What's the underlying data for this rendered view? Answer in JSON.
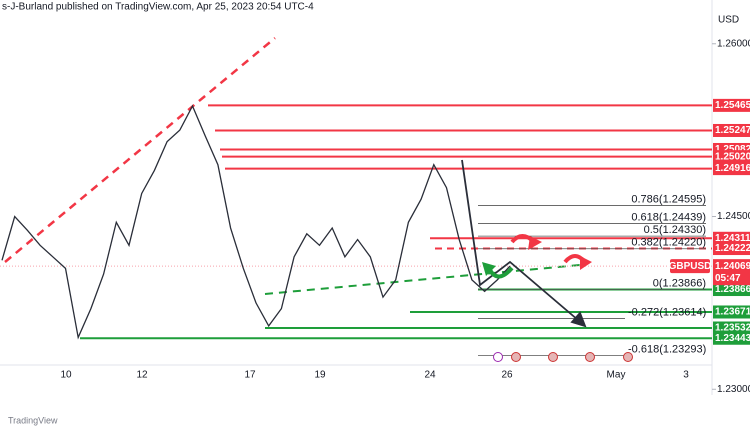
{
  "header": {
    "author_line": "s-J-Burland published on TradingView.com, Apr 25, 2023 20:54 UTC-4",
    "currency": "USD",
    "footer": "TradingView"
  },
  "chart_data": {
    "type": "line",
    "color": "#2a2e39",
    "values": [
      1.2412,
      1.245,
      1.2438,
      1.2425,
      1.2415,
      1.2405,
      1.2345,
      1.237,
      1.24,
      1.2445,
      1.2425,
      1.247,
      1.249,
      1.2515,
      1.2525,
      1.2546,
      1.252,
      1.2495,
      1.244,
      1.2405,
      1.2375,
      1.2355,
      1.237,
      1.2415,
      1.2435,
      1.2425,
      1.244,
      1.2415,
      1.243,
      1.2415,
      1.238,
      1.2395,
      1.2445,
      1.2465,
      1.2495,
      1.2475,
      1.243,
      1.2395,
      1.2385,
      1.2395,
      1.2407
    ],
    "ylim": [
      1.2282,
      1.2638
    ],
    "yticks": [
      {
        "value": 1.26,
        "label": "1.26000"
      },
      {
        "value": 1.245,
        "label": "1.24500"
      },
      {
        "value": 1.23,
        "label": "1.23000"
      }
    ],
    "x_labels": [
      "10",
      "12",
      "17",
      "19",
      "24",
      "26",
      "May",
      "3"
    ],
    "levels": [
      {
        "value": 1.25465,
        "label": "1.25465",
        "color": "#f23645"
      },
      {
        "value": 1.25247,
        "label": "1.25247",
        "color": "#f23645"
      },
      {
        "value": 1.25082,
        "label": "1.25082",
        "color": "#f23645"
      },
      {
        "value": 1.2502,
        "label": "1.25020",
        "color": "#f23645"
      },
      {
        "value": 1.24916,
        "label": "1.24916",
        "color": "#f23645"
      },
      {
        "value": 1.24311,
        "label": "1.24311",
        "color": "#f23645"
      },
      {
        "value": 1.24222,
        "label": "1.24222",
        "color": "#f23645"
      },
      {
        "value": 1.23866,
        "label": "1.23866",
        "color": "#1e9e3a"
      },
      {
        "value": 1.23671,
        "label": "1.23671",
        "color": "#1e9e3a"
      },
      {
        "value": 1.23532,
        "label": "1.23532",
        "color": "#1e9e3a"
      },
      {
        "value": 1.23443,
        "label": "1.23443",
        "color": "#1e9e3a"
      }
    ],
    "fib_levels": [
      {
        "value": 1.24595,
        "label": "0.786(1.24595)"
      },
      {
        "value": 1.24439,
        "label": "0.618(1.24439)"
      },
      {
        "value": 1.2433,
        "label": "0.5(1.24330)"
      },
      {
        "value": 1.2422,
        "label": "0.382(1.24220)"
      },
      {
        "value": 1.23866,
        "label": "0(1.23866)"
      },
      {
        "value": 1.23614,
        "label": "-0.272(1.23614)"
      },
      {
        "value": 1.23293,
        "label": "-0.618(1.23293)"
      }
    ],
    "current_price": {
      "symbol": "GBPUSD",
      "value": 1.24069,
      "label": "1.24069",
      "countdown": "05:47"
    }
  }
}
